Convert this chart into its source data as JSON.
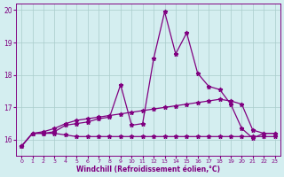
{
  "x": [
    0,
    1,
    2,
    3,
    4,
    5,
    6,
    7,
    8,
    9,
    10,
    11,
    12,
    13,
    14,
    15,
    16,
    17,
    18,
    19,
    20,
    21,
    22,
    23
  ],
  "line1": [
    15.8,
    16.2,
    16.2,
    16.25,
    16.45,
    16.5,
    16.55,
    16.65,
    16.7,
    17.7,
    16.45,
    16.5,
    18.5,
    19.95,
    18.65,
    19.3,
    18.05,
    17.65,
    17.55,
    17.1,
    16.35,
    16.05,
    16.2,
    16.2
  ],
  "line2": [
    15.8,
    16.2,
    16.25,
    16.35,
    16.5,
    16.6,
    16.65,
    16.7,
    16.75,
    16.8,
    16.85,
    16.9,
    16.95,
    17.0,
    17.05,
    17.1,
    17.15,
    17.2,
    17.25,
    17.2,
    17.1,
    16.3,
    16.2,
    16.2
  ],
  "line3": [
    15.8,
    16.2,
    16.2,
    16.2,
    16.15,
    16.1,
    16.1,
    16.1,
    16.1,
    16.1,
    16.1,
    16.1,
    16.1,
    16.1,
    16.1,
    16.1,
    16.1,
    16.1,
    16.1,
    16.1,
    16.1,
    16.1,
    16.1,
    16.1
  ],
  "line_color": "#800080",
  "bg_color": "#d4eef0",
  "grid_color": "#aacccc",
  "xlabel": "Windchill (Refroidissement éolien,°C)",
  "ylim": [
    15.5,
    20.2
  ],
  "xlim": [
    -0.5,
    23.5
  ],
  "yticks": [
    16,
    17,
    18,
    19,
    20
  ],
  "xticks": [
    0,
    1,
    2,
    3,
    4,
    5,
    6,
    7,
    8,
    9,
    10,
    11,
    12,
    13,
    14,
    15,
    16,
    17,
    18,
    19,
    20,
    21,
    22,
    23
  ]
}
